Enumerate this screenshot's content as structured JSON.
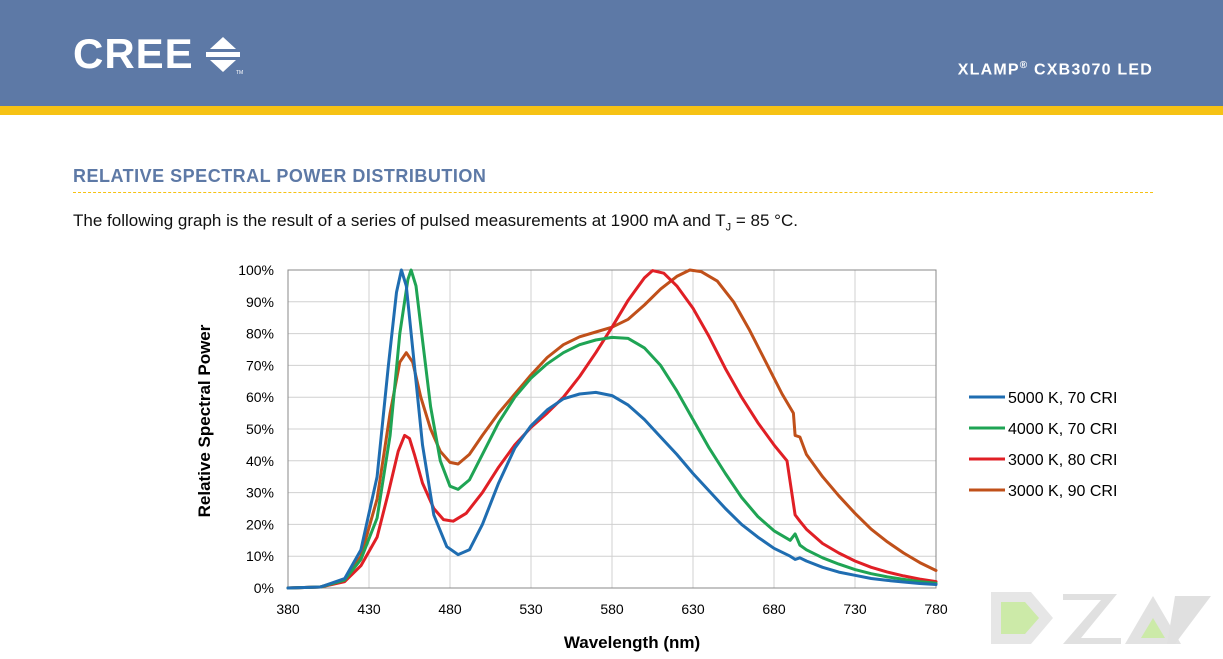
{
  "header": {
    "logo_text": "CREE",
    "product_title": "XLAMP",
    "product_reg": "®",
    "product_model": " CXB3070 LED",
    "colors": {
      "band": "#5d79a6",
      "stripe": "#f6c214"
    }
  },
  "section": {
    "title": "RELATIVE SPECTRAL POWER DISTRIBUTION",
    "desc_before": "The following graph is the result of a series of pulsed measurements at 1900 mA and T",
    "desc_sub": "J",
    "desc_after": " = 85 °C."
  },
  "watermark": {
    "icon": "dz-watermark-icon"
  },
  "chart_data": {
    "type": "line",
    "title": "",
    "xlabel": "Wavelength (nm)",
    "ylabel": "Relative Spectral Power",
    "xlim": [
      380,
      780
    ],
    "ylim": [
      0,
      100
    ],
    "x_ticks": [
      380,
      430,
      480,
      530,
      580,
      630,
      680,
      730,
      780
    ],
    "y_ticks": [
      0,
      10,
      20,
      30,
      40,
      50,
      60,
      70,
      80,
      90,
      100
    ],
    "y_tick_labels": [
      "0%",
      "10%",
      "20%",
      "30%",
      "40%",
      "50%",
      "60%",
      "70%",
      "80%",
      "90%",
      "100%"
    ],
    "grid": true,
    "legend_position": "right",
    "series": [
      {
        "name": "5000 K, 70 CRI",
        "color": "#1f6db1",
        "points": [
          [
            380,
            0
          ],
          [
            400,
            0.3
          ],
          [
            415,
            3
          ],
          [
            425,
            12
          ],
          [
            435,
            35
          ],
          [
            442,
            70
          ],
          [
            447,
            93
          ],
          [
            450,
            100
          ],
          [
            453,
            95
          ],
          [
            458,
            70
          ],
          [
            463,
            45
          ],
          [
            470,
            23
          ],
          [
            478,
            13
          ],
          [
            485,
            10.5
          ],
          [
            492,
            12
          ],
          [
            500,
            20
          ],
          [
            510,
            33
          ],
          [
            520,
            44
          ],
          [
            530,
            51
          ],
          [
            540,
            56
          ],
          [
            550,
            59.5
          ],
          [
            560,
            61
          ],
          [
            570,
            61.5
          ],
          [
            580,
            60.5
          ],
          [
            590,
            57.5
          ],
          [
            600,
            53
          ],
          [
            610,
            47.5
          ],
          [
            620,
            42
          ],
          [
            630,
            36
          ],
          [
            640,
            30.5
          ],
          [
            650,
            25
          ],
          [
            660,
            20
          ],
          [
            670,
            16
          ],
          [
            680,
            12.5
          ],
          [
            690,
            10
          ],
          [
            693,
            9
          ],
          [
            696,
            9.5
          ],
          [
            700,
            8.5
          ],
          [
            710,
            6.5
          ],
          [
            720,
            5
          ],
          [
            730,
            4
          ],
          [
            740,
            3
          ],
          [
            750,
            2.4
          ],
          [
            760,
            1.9
          ],
          [
            770,
            1.4
          ],
          [
            780,
            1.1
          ]
        ]
      },
      {
        "name": "4000 K, 70 CRI",
        "color": "#1fa454",
        "points": [
          [
            380,
            0
          ],
          [
            400,
            0.3
          ],
          [
            415,
            2.5
          ],
          [
            425,
            9
          ],
          [
            435,
            22
          ],
          [
            443,
            48
          ],
          [
            449,
            80
          ],
          [
            454,
            97
          ],
          [
            456,
            100
          ],
          [
            459,
            95
          ],
          [
            463,
            78
          ],
          [
            468,
            57
          ],
          [
            474,
            40
          ],
          [
            480,
            32
          ],
          [
            485,
            31
          ],
          [
            492,
            34
          ],
          [
            500,
            42
          ],
          [
            510,
            52
          ],
          [
            520,
            60
          ],
          [
            530,
            66
          ],
          [
            540,
            70.5
          ],
          [
            550,
            74
          ],
          [
            560,
            76.5
          ],
          [
            570,
            78
          ],
          [
            580,
            78.8
          ],
          [
            590,
            78.5
          ],
          [
            600,
            75.5
          ],
          [
            610,
            70
          ],
          [
            620,
            62
          ],
          [
            630,
            53
          ],
          [
            640,
            44
          ],
          [
            650,
            36
          ],
          [
            660,
            28.5
          ],
          [
            670,
            22.5
          ],
          [
            680,
            18
          ],
          [
            690,
            15
          ],
          [
            693,
            17
          ],
          [
            696,
            13.5
          ],
          [
            700,
            12
          ],
          [
            710,
            9.5
          ],
          [
            720,
            7.5
          ],
          [
            730,
            5.8
          ],
          [
            740,
            4.5
          ],
          [
            750,
            3.5
          ],
          [
            760,
            2.7
          ],
          [
            770,
            2
          ],
          [
            780,
            1.5
          ]
        ]
      },
      {
        "name": "3000 K, 80 CRI",
        "color": "#e01f25",
        "points": [
          [
            380,
            0
          ],
          [
            400,
            0.3
          ],
          [
            415,
            2
          ],
          [
            425,
            7
          ],
          [
            435,
            16
          ],
          [
            442,
            30
          ],
          [
            448,
            43
          ],
          [
            452,
            48
          ],
          [
            455,
            47
          ],
          [
            458,
            42
          ],
          [
            463,
            33
          ],
          [
            470,
            25
          ],
          [
            476,
            21.5
          ],
          [
            482,
            21
          ],
          [
            490,
            23.5
          ],
          [
            500,
            30
          ],
          [
            510,
            38
          ],
          [
            520,
            45
          ],
          [
            530,
            50.5
          ],
          [
            540,
            55
          ],
          [
            550,
            60
          ],
          [
            560,
            66.5
          ],
          [
            570,
            74
          ],
          [
            580,
            82
          ],
          [
            590,
            90.5
          ],
          [
            600,
            97.5
          ],
          [
            605,
            99.8
          ],
          [
            612,
            99
          ],
          [
            620,
            95
          ],
          [
            630,
            88
          ],
          [
            640,
            79
          ],
          [
            650,
            69
          ],
          [
            660,
            60
          ],
          [
            670,
            52
          ],
          [
            680,
            45
          ],
          [
            688,
            40
          ],
          [
            693,
            23
          ],
          [
            696,
            21
          ],
          [
            700,
            18.5
          ],
          [
            710,
            14
          ],
          [
            720,
            11
          ],
          [
            730,
            8.5
          ],
          [
            740,
            6.5
          ],
          [
            750,
            5
          ],
          [
            760,
            3.8
          ],
          [
            770,
            2.8
          ],
          [
            780,
            2
          ]
        ]
      },
      {
        "name": "3000 K, 90 CRI",
        "color": "#c0501a",
        "points": [
          [
            380,
            0
          ],
          [
            400,
            0.3
          ],
          [
            415,
            2.5
          ],
          [
            425,
            10
          ],
          [
            435,
            28
          ],
          [
            443,
            55
          ],
          [
            449,
            71
          ],
          [
            453,
            74
          ],
          [
            457,
            71
          ],
          [
            462,
            60
          ],
          [
            468,
            50
          ],
          [
            474,
            43
          ],
          [
            480,
            39.5
          ],
          [
            485,
            39
          ],
          [
            492,
            42
          ],
          [
            500,
            48
          ],
          [
            510,
            55
          ],
          [
            520,
            61
          ],
          [
            530,
            67
          ],
          [
            540,
            72.5
          ],
          [
            550,
            76.5
          ],
          [
            560,
            79
          ],
          [
            570,
            80.5
          ],
          [
            580,
            82
          ],
          [
            590,
            84.5
          ],
          [
            600,
            89
          ],
          [
            610,
            94
          ],
          [
            620,
            98
          ],
          [
            628,
            100
          ],
          [
            635,
            99.5
          ],
          [
            645,
            96.5
          ],
          [
            655,
            90
          ],
          [
            665,
            81
          ],
          [
            675,
            71
          ],
          [
            685,
            61
          ],
          [
            692,
            55
          ],
          [
            693,
            48
          ],
          [
            696,
            47.5
          ],
          [
            700,
            42
          ],
          [
            710,
            35
          ],
          [
            720,
            29
          ],
          [
            730,
            23.5
          ],
          [
            740,
            18.5
          ],
          [
            750,
            14.5
          ],
          [
            760,
            11
          ],
          [
            770,
            8
          ],
          [
            780,
            5.5
          ]
        ]
      }
    ]
  }
}
